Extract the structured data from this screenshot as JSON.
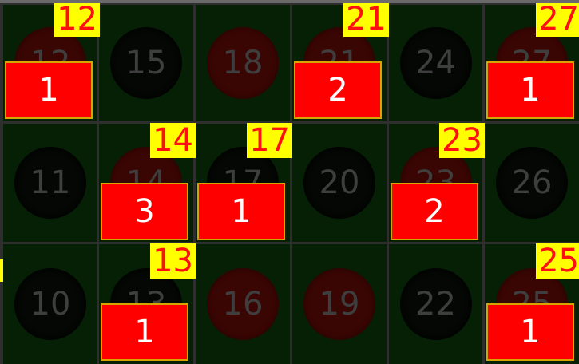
{
  "board": {
    "rows": [
      [
        {
          "number": "12",
          "color": "red",
          "tag": "12",
          "chip": "1"
        },
        {
          "number": "15",
          "color": "black",
          "tag": null,
          "chip": null
        },
        {
          "number": "18",
          "color": "red",
          "tag": null,
          "chip": null
        },
        {
          "number": "21",
          "color": "red",
          "tag": "21",
          "chip": "2"
        },
        {
          "number": "24",
          "color": "black",
          "tag": null,
          "chip": null
        },
        {
          "number": "27",
          "color": "red",
          "tag": "27",
          "chip": "1"
        }
      ],
      [
        {
          "number": "11",
          "color": "black",
          "tag": null,
          "chip": null
        },
        {
          "number": "14",
          "color": "red",
          "tag": "14",
          "chip": "3"
        },
        {
          "number": "17",
          "color": "black",
          "tag": "17",
          "chip": "1"
        },
        {
          "number": "20",
          "color": "black",
          "tag": null,
          "chip": null
        },
        {
          "number": "23",
          "color": "red",
          "tag": "23",
          "chip": "2"
        },
        {
          "number": "26",
          "color": "black",
          "tag": null,
          "chip": null
        }
      ],
      [
        {
          "number": "10",
          "color": "black",
          "tag": null,
          "chip": null
        },
        {
          "number": "13",
          "color": "black",
          "tag": "13",
          "chip": "1"
        },
        {
          "number": "16",
          "color": "red",
          "tag": null,
          "chip": null
        },
        {
          "number": "19",
          "color": "red",
          "tag": null,
          "chip": null
        },
        {
          "number": "22",
          "color": "black",
          "tag": null,
          "chip": null
        },
        {
          "number": "25",
          "color": "red",
          "tag": "25",
          "chip": "1"
        }
      ]
    ]
  },
  "colors": {
    "felt": "#062006",
    "chip": "#ff0000",
    "chip_border": "#d7a400",
    "tag_background": "#ffff00",
    "tag_text": "#ff1010",
    "number_text": "#3e3e3e"
  }
}
